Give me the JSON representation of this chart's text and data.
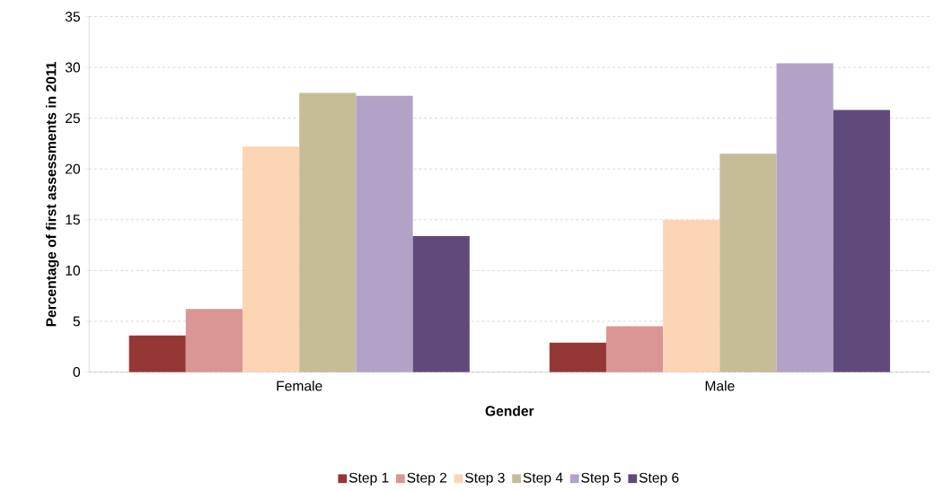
{
  "chart_data": {
    "type": "bar",
    "xlabel": "Gender",
    "ylabel": "Percentage of first assessments in 2011",
    "categories": [
      "Female",
      "Male"
    ],
    "series": [
      {
        "name": "Step 1",
        "color": "#953735",
        "values": [
          3.6,
          2.9
        ]
      },
      {
        "name": "Step 2",
        "color": "#d99694",
        "values": [
          6.2,
          4.5
        ]
      },
      {
        "name": "Step 3",
        "color": "#fcd5b5",
        "values": [
          22.2,
          15.0
        ]
      },
      {
        "name": "Step 4",
        "color": "#c4bd97",
        "values": [
          27.5,
          21.5
        ]
      },
      {
        "name": "Step 5",
        "color": "#b3a2c7",
        "values": [
          27.2,
          30.4
        ]
      },
      {
        "name": "Step 6",
        "color": "#604a7b",
        "values": [
          13.4,
          25.8
        ]
      }
    ],
    "ylim": [
      0,
      35
    ],
    "yticks": [
      0,
      5,
      10,
      15,
      20,
      25,
      30,
      35
    ],
    "grid": "y",
    "legend": "bottom"
  }
}
